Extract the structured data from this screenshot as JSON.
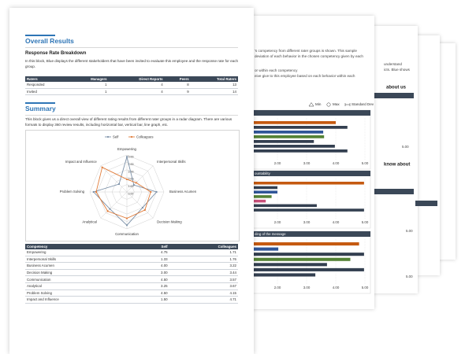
{
  "front_page": {
    "overall_results": {
      "title": "Overall Results",
      "subtitle": "Response Rate Breakdown",
      "text": "In this block, Blue displays the different stakeholders that have been invited to evaluate this employee and the response rate for each group.",
      "table": {
        "header": [
          "Raters",
          "Managers",
          "Direct Reports",
          "Peers",
          "Total Raters"
        ],
        "rows": [
          [
            "Responded",
            "1",
            "4",
            "8",
            "13"
          ],
          [
            "Invited",
            "1",
            "4",
            "9",
            "14"
          ]
        ]
      }
    },
    "summary": {
      "title": "Summary",
      "text": "This block gives us a direct overall view of different rating results from different rater groups in a radar diagram. There are various formats to display 360 review results, including horizontal bar, vertical bar, line graph, etc.",
      "radar": {
        "type": "radar",
        "axes": [
          "Empowering",
          "Interpersonal Skills",
          "Business Acumen",
          "Decision Making",
          "Communication",
          "Analytical",
          "Problem Solving",
          "Impact and Influence"
        ],
        "rlim": [
          0,
          5
        ],
        "rticks": [
          {
            "value": 0,
            "label": "0.00"
          },
          {
            "value": 1,
            "label": "1.00"
          },
          {
            "value": 2,
            "label": "2.00"
          },
          {
            "value": 3,
            "label": "3.00"
          },
          {
            "value": 4,
            "label": "4.00"
          },
          {
            "value": 5,
            "label": "5.00"
          }
        ],
        "series": [
          {
            "name": "Self",
            "color": "#7d92a9",
            "values": [
              4.75,
              1.33,
              4.0,
              3.0,
              4.5,
              3.25,
              4.5,
              1.5
            ]
          },
          {
            "name": "Colleagues",
            "color": "#e07b39",
            "values": [
              1.71,
              1.76,
              3.22,
              3.44,
              3.57,
              3.67,
              4.15,
              4.71
            ]
          }
        ]
      },
      "table": {
        "header": [
          "Competency",
          "Self",
          "Colleagues"
        ],
        "rows": [
          [
            "Empowering",
            "4.75",
            "1.71"
          ],
          [
            "Interpersonal Skills",
            "1.33",
            "1.76"
          ],
          [
            "Business Acumen",
            "4.00",
            "3.22"
          ],
          [
            "Decision Making",
            "3.00",
            "3.44"
          ],
          [
            "Communication",
            "4.50",
            "3.57"
          ],
          [
            "Analytical",
            "3.25",
            "3.67"
          ],
          [
            "Problem Solving",
            "4.50",
            "4.15"
          ],
          [
            "Impact and Influence",
            "1.50",
            "4.71"
          ]
        ]
      }
    }
  },
  "back_page": {
    "text": [
      "'s competency from different rater groups is shown. This sample",
      "deviation of each behavior in the chosen competency given by each",
      "or within each competency",
      "eive give to this employee based on each behavior within each"
    ],
    "legend": [
      "Min",
      "Max",
      "Standard Dev"
    ],
    "xlim": [
      1,
      5
    ],
    "xticks": [
      {
        "value": 2,
        "label": "2.00"
      },
      {
        "value": 3,
        "label": "3.00"
      },
      {
        "value": 4,
        "label": "4.00"
      },
      {
        "value": 5,
        "label": "5.00"
      }
    ],
    "panels": [
      {
        "values": [
          4.0,
          4.4,
          3.57,
          3.6,
          3.25,
          3.97,
          4.4
        ],
        "colors": [
          "#c55a11",
          "#333f50",
          "#2f5597",
          "#548235",
          "#333f50",
          "#333f50",
          "#333f50"
        ]
      },
      {
        "title": "ountability",
        "values": [
          4.97,
          2.0,
          2.0,
          1.8,
          1.6,
          3.35,
          4.97
        ],
        "colors": [
          "#c55a11",
          "#333f50",
          "#2f5597",
          "#548235",
          "#c9507a",
          "#333f50",
          "#333f50"
        ]
      },
      {
        "title": "ding of the message",
        "values": [
          4.8,
          2.03,
          4.97,
          4.5,
          3.7,
          4.97,
          3.3
        ],
        "colors": [
          "#c55a11",
          "#2f5597",
          "#333f50",
          "#548235",
          "#333f50",
          "#333f50",
          "#333f50"
        ]
      }
    ]
  },
  "third_page": {
    "text": [
      "understand",
      "icts. Blue shows"
    ],
    "headings": [
      "about us",
      "know about"
    ],
    "axis_labels": [
      "5.00",
      "5.00",
      "5.00"
    ]
  }
}
